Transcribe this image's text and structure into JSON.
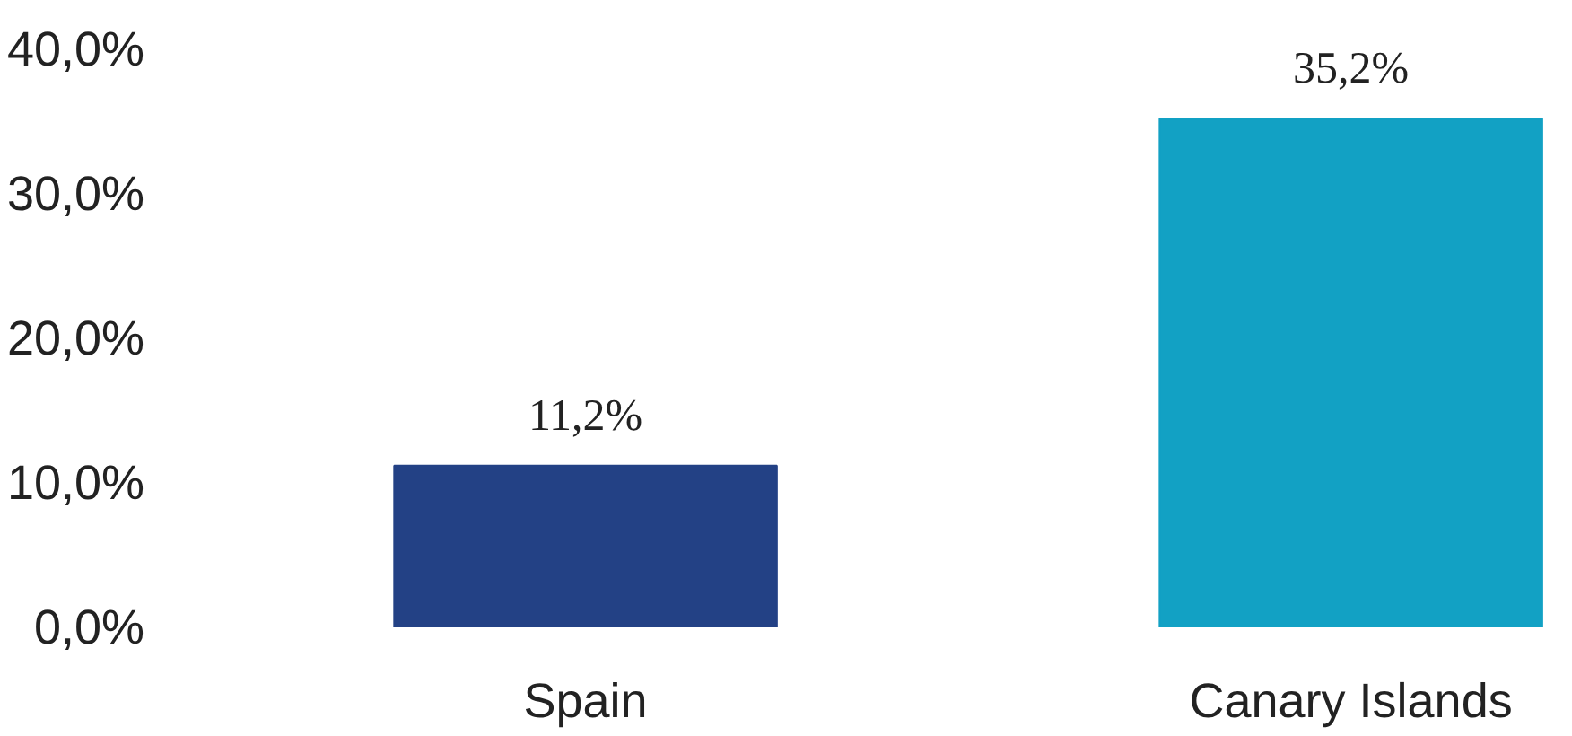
{
  "chart_data": {
    "type": "bar",
    "categories": [
      "Spain",
      "Canary Islands"
    ],
    "values": [
      11.2,
      35.2
    ],
    "colors": [
      "#234185",
      "#12a1c4"
    ],
    "value_labels": [
      "11,2%",
      "35,2%"
    ],
    "ylim": [
      0,
      40
    ],
    "yticks": [
      {
        "value": 0,
        "label": "0,0%"
      },
      {
        "value": 10,
        "label": "10,0%"
      },
      {
        "value": 20,
        "label": "20,0%"
      },
      {
        "value": 30,
        "label": "30,0%"
      },
      {
        "value": 40,
        "label": "40,0%"
      }
    ],
    "grid": false
  }
}
